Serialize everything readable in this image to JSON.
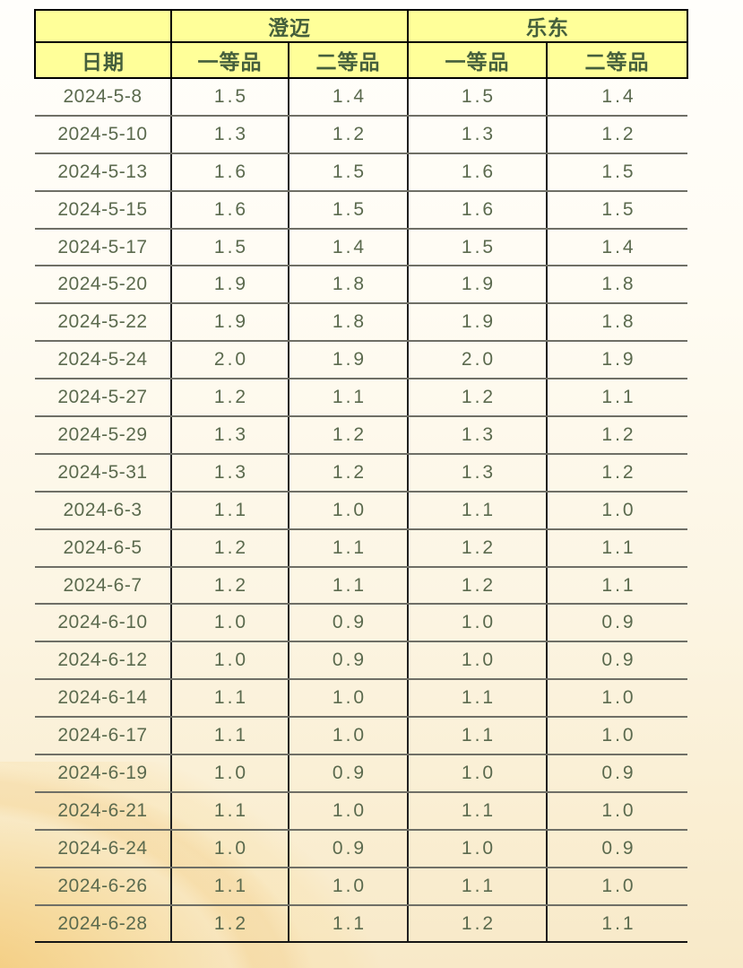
{
  "colors": {
    "header_background": "#ffff99",
    "header_text": "#455f3c",
    "body_text": "#5b6a4e",
    "outer_border": "#000000",
    "row_separator": "#6f6f66",
    "background_top": "#fffefb",
    "background_bottom": "#f8e9c8",
    "swirl_gold": "#f3c66e"
  },
  "header": {
    "regions": [
      "澄迈",
      "乐东"
    ],
    "columns": [
      "日期",
      "一等品",
      "二等品",
      "一等品",
      "二等品"
    ]
  },
  "chart_data": {
    "type": "table",
    "region_groups": [
      "澄迈",
      "乐东"
    ],
    "columns": [
      "日期",
      "澄迈 一等品",
      "澄迈 二等品",
      "乐东 一等品",
      "乐东 二等品"
    ],
    "rows": [
      [
        "2024-5-8",
        "1.5",
        "1.4",
        "1.5",
        "1.4"
      ],
      [
        "2024-5-10",
        "1.3",
        "1.2",
        "1.3",
        "1.2"
      ],
      [
        "2024-5-13",
        "1.6",
        "1.5",
        "1.6",
        "1.5"
      ],
      [
        "2024-5-15",
        "1.6",
        "1.5",
        "1.6",
        "1.5"
      ],
      [
        "2024-5-17",
        "1.5",
        "1.4",
        "1.5",
        "1.4"
      ],
      [
        "2024-5-20",
        "1.9",
        "1.8",
        "1.9",
        "1.8"
      ],
      [
        "2024-5-22",
        "1.9",
        "1.8",
        "1.9",
        "1.8"
      ],
      [
        "2024-5-24",
        "2.0",
        "1.9",
        "2.0",
        "1.9"
      ],
      [
        "2024-5-27",
        "1.2",
        "1.1",
        "1.2",
        "1.1"
      ],
      [
        "2024-5-29",
        "1.3",
        "1.2",
        "1.3",
        "1.2"
      ],
      [
        "2024-5-31",
        "1.3",
        "1.2",
        "1.3",
        "1.2"
      ],
      [
        "2024-6-3",
        "1.1",
        "1.0",
        "1.1",
        "1.0"
      ],
      [
        "2024-6-5",
        "1.2",
        "1.1",
        "1.2",
        "1.1"
      ],
      [
        "2024-6-7",
        "1.2",
        "1.1",
        "1.2",
        "1.1"
      ],
      [
        "2024-6-10",
        "1.0",
        "0.9",
        "1.0",
        "0.9"
      ],
      [
        "2024-6-12",
        "1.0",
        "0.9",
        "1.0",
        "0.9"
      ],
      [
        "2024-6-14",
        "1.1",
        "1.0",
        "1.1",
        "1.0"
      ],
      [
        "2024-6-17",
        "1.1",
        "1.0",
        "1.1",
        "1.0"
      ],
      [
        "2024-6-19",
        "1.0",
        "0.9",
        "1.0",
        "0.9"
      ],
      [
        "2024-6-21",
        "1.1",
        "1.0",
        "1.1",
        "1.0"
      ],
      [
        "2024-6-24",
        "1.0",
        "0.9",
        "1.0",
        "0.9"
      ],
      [
        "2024-6-26",
        "1.1",
        "1.0",
        "1.1",
        "1.0"
      ],
      [
        "2024-6-28",
        "1.2",
        "1.1",
        "1.2",
        "1.1"
      ]
    ]
  }
}
